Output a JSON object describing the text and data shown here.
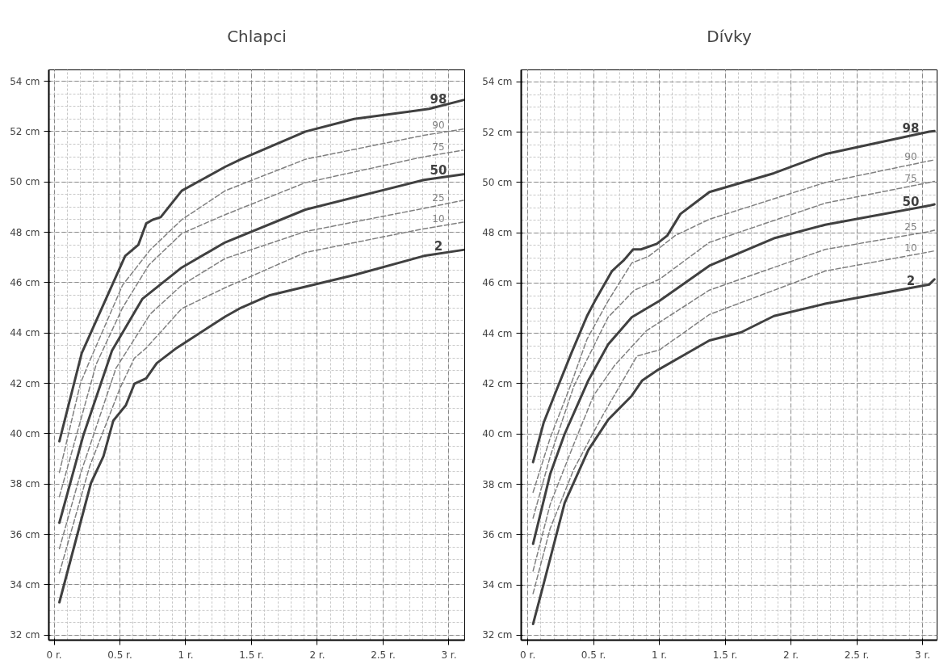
{
  "chart_data": [
    {
      "type": "line",
      "title": "Chlapci",
      "xlim": [
        -0.04,
        3.12
      ],
      "ylim": [
        31.8,
        54.45
      ],
      "xticks": [
        {
          "value": 0,
          "label": "0 r."
        },
        {
          "value": 0.5,
          "label": "0.5 r."
        },
        {
          "value": 1,
          "label": "1 r."
        },
        {
          "value": 1.5,
          "label": "1.5 r."
        },
        {
          "value": 2,
          "label": "2 r."
        },
        {
          "value": 2.5,
          "label": "2.5 r."
        },
        {
          "value": 3,
          "label": "3 r."
        }
      ],
      "yticks": [
        {
          "value": 32,
          "label": "32 cm"
        },
        {
          "value": 34,
          "label": "34 cm"
        },
        {
          "value": 36,
          "label": "36 cm"
        },
        {
          "value": 38,
          "label": "38 cm"
        },
        {
          "value": 40,
          "label": "40 cm"
        },
        {
          "value": 42,
          "label": "42 cm"
        },
        {
          "value": 44,
          "label": "44 cm"
        },
        {
          "value": 46,
          "label": "46 cm"
        },
        {
          "value": 48,
          "label": "48 cm"
        },
        {
          "value": 50,
          "label": "50 cm"
        },
        {
          "value": 52,
          "label": "52 cm"
        },
        {
          "value": 54,
          "label": "54 cm"
        }
      ],
      "grid": true,
      "legend": false,
      "marker": "none",
      "series": [
        {
          "name": "98",
          "color": "#404040",
          "line_style": "solid",
          "x": [
            0.04,
            0.21,
            0.54,
            0.64,
            0.7,
            0.75,
            0.81,
            0.97,
            1.3,
            1.42,
            1.91,
            2.28,
            2.85,
            3.11
          ],
          "values": [
            39.7,
            43.2,
            47.06,
            47.5,
            48.35,
            48.5,
            48.6,
            49.65,
            50.6,
            50.9,
            52.0,
            52.5,
            52.9,
            53.25
          ]
        },
        {
          "name": "90",
          "color": "#808080",
          "line_style": "dashed",
          "x": [
            0.04,
            0.2,
            0.26,
            0.52,
            0.73,
            0.97,
            1.3,
            1.91,
            2.81,
            3.11
          ],
          "values": [
            38.46,
            42.0,
            42.76,
            45.9,
            47.3,
            48.5,
            49.65,
            50.9,
            51.85,
            52.1
          ]
        },
        {
          "name": "75",
          "color": "#808080",
          "line_style": "dashed",
          "x": [
            0.04,
            0.32,
            0.52,
            0.72,
            0.97,
            1.3,
            1.91,
            2.81,
            3.11
          ],
          "values": [
            37.5,
            42.76,
            45.0,
            46.7,
            47.95,
            48.7,
            49.97,
            51.0,
            51.26
          ]
        },
        {
          "name": "50",
          "color": "#404040",
          "line_style": "solid",
          "x": [
            0.04,
            0.22,
            0.44,
            0.67,
            0.97,
            1.3,
            1.91,
            2.81,
            3.11
          ],
          "values": [
            36.46,
            39.9,
            43.3,
            45.35,
            46.6,
            47.6,
            48.9,
            50.08,
            50.3
          ]
        },
        {
          "name": "25",
          "color": "#808080",
          "line_style": "dashed",
          "x": [
            0.04,
            0.2,
            0.47,
            0.73,
            0.97,
            1.3,
            1.91,
            2.81,
            3.11
          ],
          "values": [
            35.43,
            38.4,
            42.6,
            44.75,
            45.9,
            46.96,
            48.03,
            48.95,
            49.27
          ]
        },
        {
          "name": "10",
          "color": "#808080",
          "line_style": "dashed",
          "x": [
            0.04,
            0.27,
            0.5,
            0.61,
            0.7,
            0.97,
            1.3,
            1.91,
            2.81,
            3.11
          ],
          "values": [
            34.46,
            38.7,
            41.8,
            43.0,
            43.4,
            44.97,
            45.8,
            47.2,
            48.14,
            48.4
          ]
        },
        {
          "name": "2",
          "color": "#404040",
          "line_style": "solid",
          "x": [
            0.04,
            0.28,
            0.375,
            0.45,
            0.545,
            0.61,
            0.7,
            0.78,
            0.93,
            1.3,
            1.42,
            1.64,
            2.28,
            2.81,
            3.11
          ],
          "values": [
            33.3,
            38.04,
            39.1,
            40.52,
            41.13,
            41.98,
            42.2,
            42.8,
            43.4,
            44.65,
            45.0,
            45.5,
            46.3,
            47.06,
            47.3
          ]
        }
      ]
    },
    {
      "type": "line",
      "title": "Dívky",
      "xlim": [
        -0.05,
        3.11
      ],
      "ylim": [
        31.8,
        54.48
      ],
      "xticks": [
        {
          "value": 0,
          "label": "0 r."
        },
        {
          "value": 0.5,
          "label": "0.5 r."
        },
        {
          "value": 1,
          "label": "1 r."
        },
        {
          "value": 1.5,
          "label": "1.5 r."
        },
        {
          "value": 2,
          "label": "2 r."
        },
        {
          "value": 2.5,
          "label": "2.5 r."
        },
        {
          "value": 3,
          "label": "3 r."
        }
      ],
      "yticks": [
        {
          "value": 32,
          "label": "32 cm"
        },
        {
          "value": 34,
          "label": "34 cm"
        },
        {
          "value": 36,
          "label": "36 cm"
        },
        {
          "value": 38,
          "label": "38 cm"
        },
        {
          "value": 40,
          "label": "40 cm"
        },
        {
          "value": 42,
          "label": "42 cm"
        },
        {
          "value": 44,
          "label": "44 cm"
        },
        {
          "value": 46,
          "label": "46 cm"
        },
        {
          "value": 48,
          "label": "48 cm"
        },
        {
          "value": 50,
          "label": "50 cm"
        },
        {
          "value": 52,
          "label": "52 cm"
        },
        {
          "value": 54,
          "label": "54 cm"
        }
      ],
      "grid": true,
      "legend": false,
      "marker": "none",
      "series": [
        {
          "name": "98",
          "color": "#404040",
          "line_style": "solid",
          "x": [
            0.04,
            0.12,
            0.21,
            0.33,
            0.45,
            0.51,
            0.64,
            0.73,
            0.8,
            0.86,
            0.98,
            1.06,
            1.16,
            1.38,
            1.87,
            2.26,
            3.05,
            3.09
          ],
          "values": [
            38.88,
            40.44,
            41.64,
            43.2,
            44.69,
            45.29,
            46.48,
            46.91,
            47.34,
            47.34,
            47.56,
            47.89,
            48.75,
            49.62,
            50.37,
            51.13,
            52.02,
            52.05
          ]
        },
        {
          "name": "90",
          "color": "#808080",
          "line_style": "dashed",
          "x": [
            0.04,
            0.17,
            0.33,
            0.45,
            0.61,
            0.79,
            0.92,
            1.12,
            1.38,
            2.26,
            3.05,
            3.09
          ],
          "values": [
            37.68,
            39.84,
            42.0,
            43.77,
            45.29,
            46.8,
            47.07,
            47.89,
            48.54,
            50.0,
            50.86,
            50.9
          ]
        },
        {
          "name": "75",
          "color": "#808080",
          "line_style": "dashed",
          "x": [
            0.04,
            0.17,
            0.35,
            0.61,
            0.81,
            1.0,
            1.38,
            2.26,
            3.05,
            3.09
          ],
          "values": [
            36.65,
            39.1,
            41.9,
            44.64,
            45.72,
            46.15,
            47.62,
            49.18,
            50.0,
            50.05
          ]
        },
        {
          "name": "50",
          "color": "#404040",
          "line_style": "solid",
          "x": [
            0.04,
            0.17,
            0.28,
            0.46,
            0.61,
            0.79,
            1.0,
            1.38,
            1.87,
            2.26,
            3.05,
            3.09
          ],
          "values": [
            35.63,
            38.4,
            40.0,
            42.13,
            43.56,
            44.64,
            45.29,
            46.69,
            47.78,
            48.32,
            49.08,
            49.13
          ]
        },
        {
          "name": "25",
          "color": "#808080",
          "line_style": "dashed",
          "x": [
            0.04,
            0.17,
            0.35,
            0.5,
            0.66,
            0.9,
            1.38,
            2.26,
            3.05,
            3.09
          ],
          "values": [
            34.55,
            37.2,
            39.6,
            41.53,
            42.73,
            44.1,
            45.72,
            47.34,
            48.05,
            48.1
          ]
        },
        {
          "name": "10",
          "color": "#808080",
          "line_style": "dashed",
          "x": [
            0.04,
            0.17,
            0.35,
            0.55,
            0.83,
            1.0,
            1.38,
            2.26,
            3.05,
            3.09
          ],
          "values": [
            33.65,
            36.24,
            38.6,
            40.56,
            43.1,
            43.34,
            44.75,
            46.48,
            47.24,
            47.28
          ]
        },
        {
          "name": "2",
          "color": "#404040",
          "line_style": "solid",
          "x": [
            0.04,
            0.11,
            0.28,
            0.46,
            0.61,
            0.79,
            0.87,
            0.99,
            1.23,
            1.38,
            1.62,
            1.87,
            2.26,
            3.05,
            3.09
          ],
          "values": [
            32.44,
            33.83,
            37.26,
            39.36,
            40.56,
            41.52,
            42.13,
            42.55,
            43.27,
            43.72,
            44.04,
            44.69,
            45.18,
            45.94,
            46.15
          ]
        }
      ]
    }
  ]
}
